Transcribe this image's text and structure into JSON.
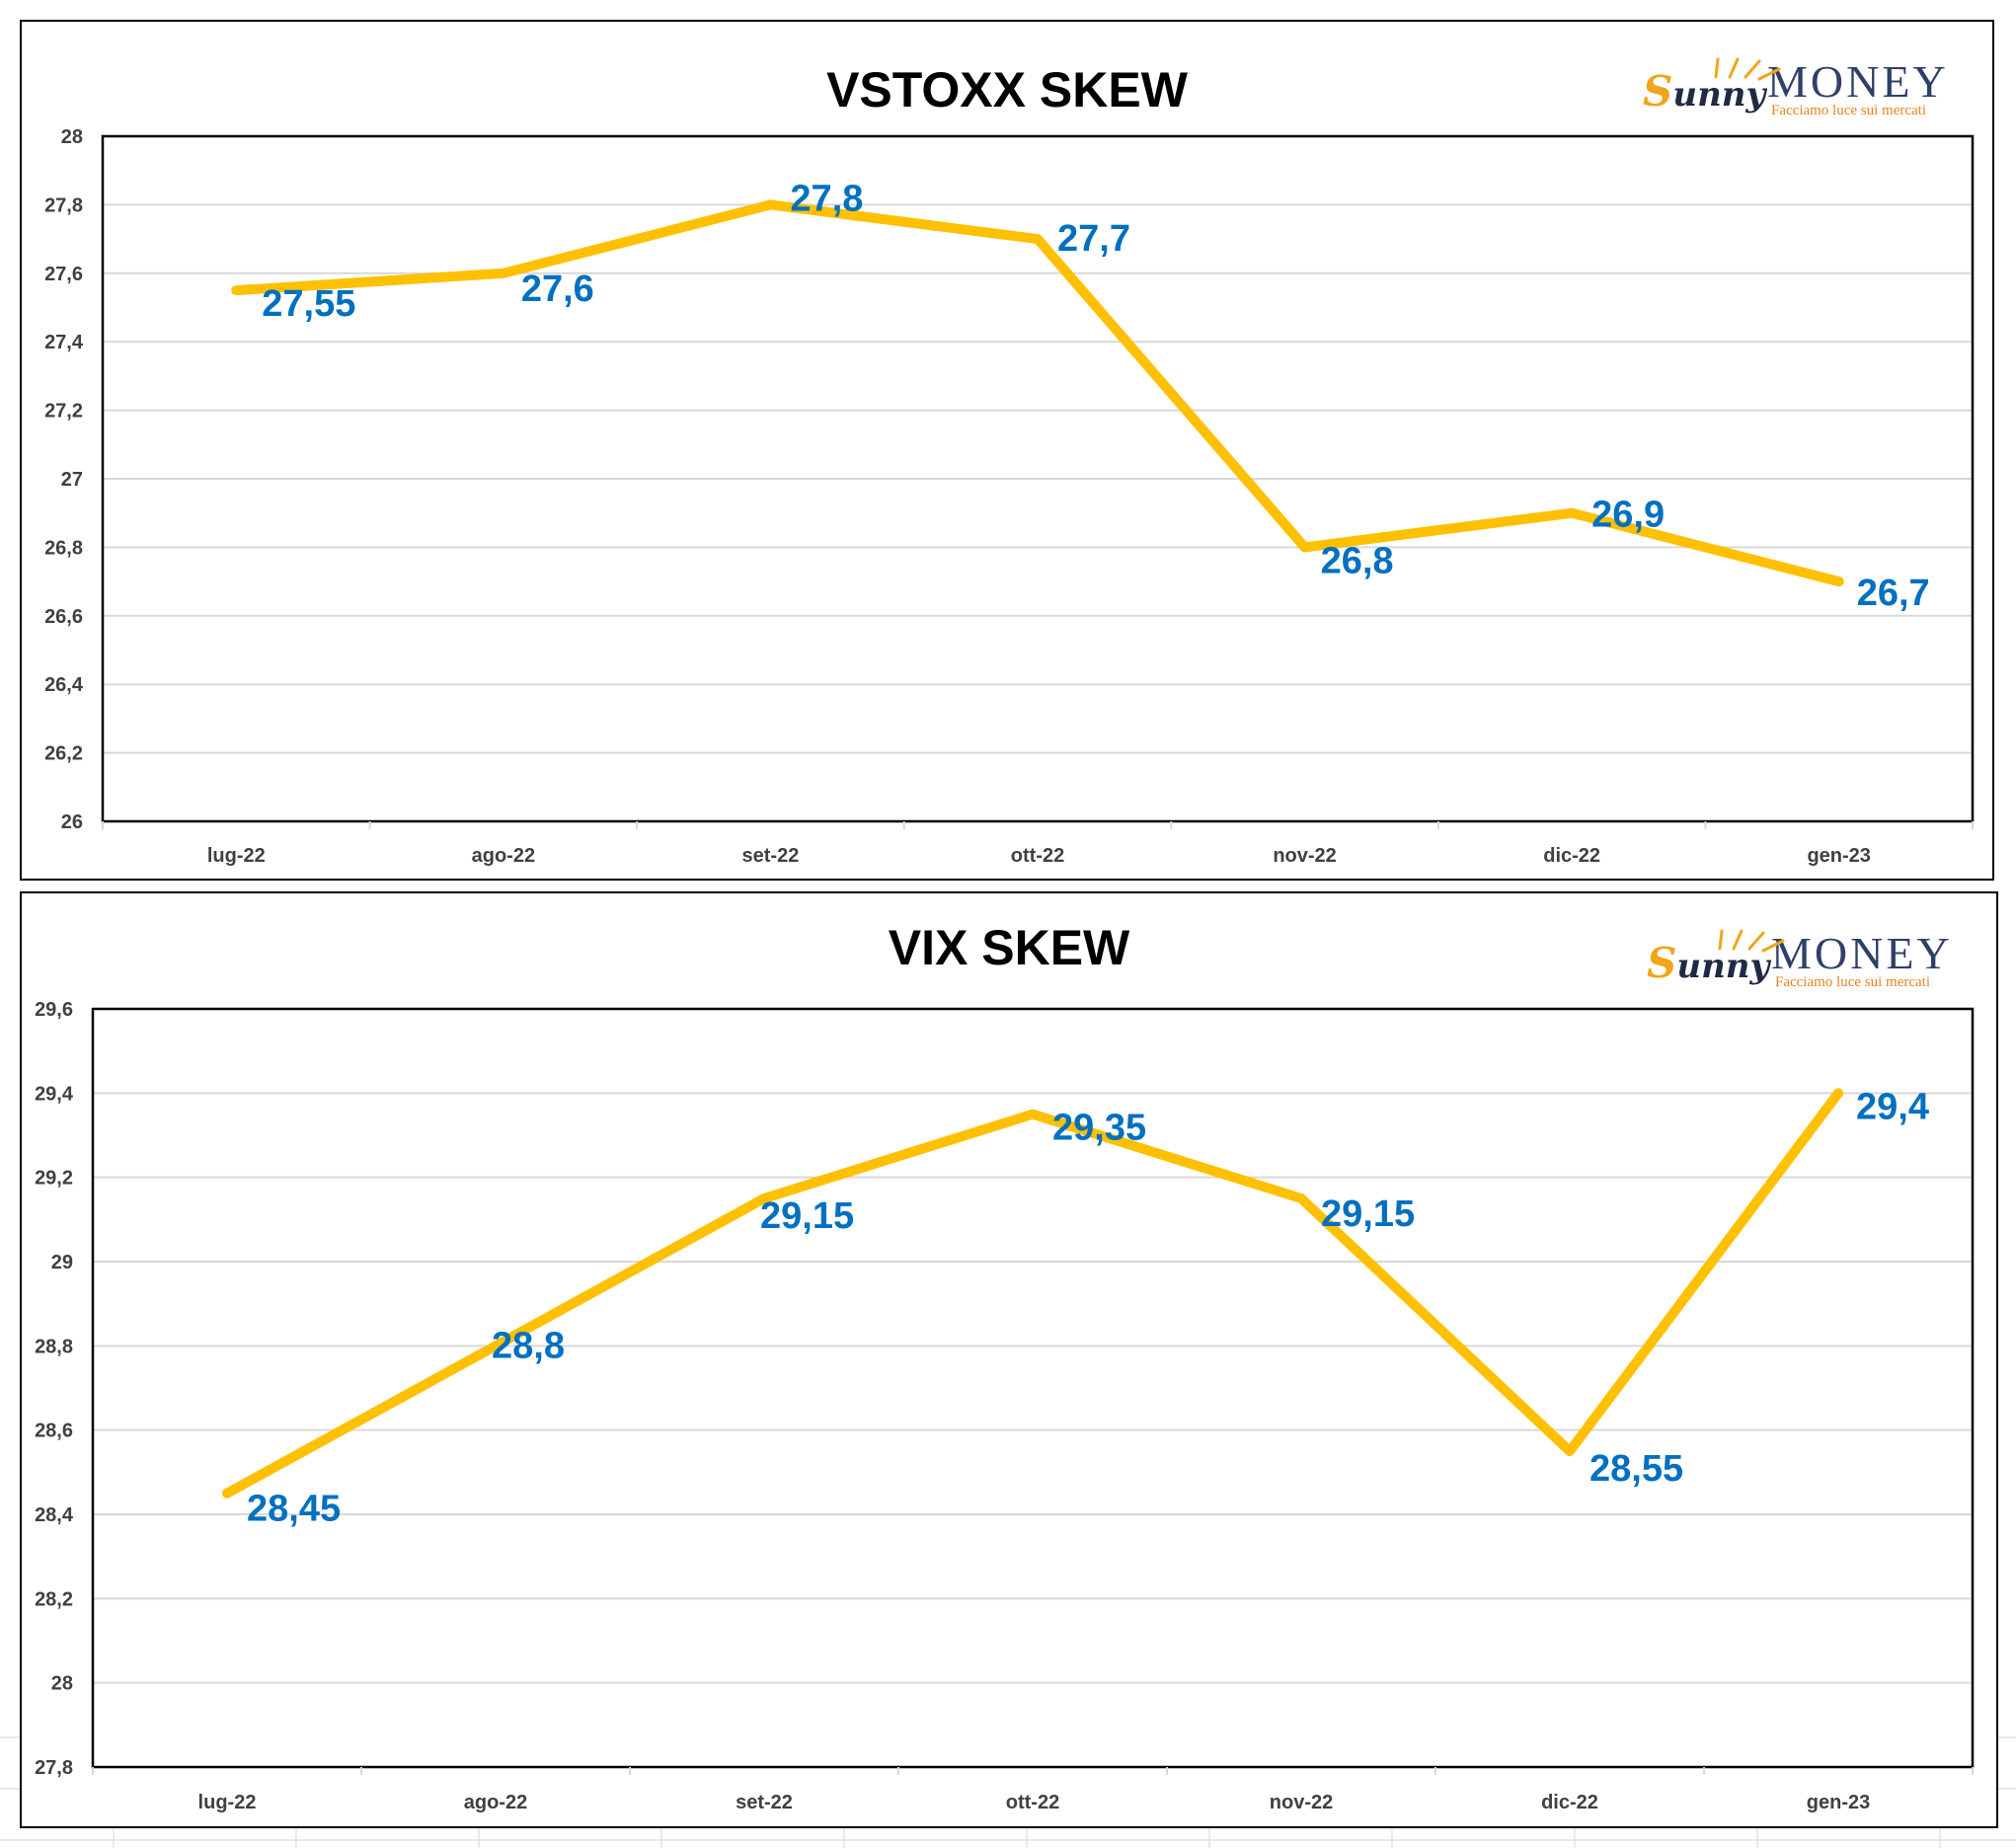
{
  "chart_data": [
    {
      "type": "line",
      "title": "VSTOXX SKEW",
      "categories": [
        "lug-22",
        "ago-22",
        "set-22",
        "ott-22",
        "nov-22",
        "dic-22",
        "gen-23"
      ],
      "values": [
        27.55,
        27.6,
        27.8,
        27.7,
        26.8,
        26.9,
        26.7
      ],
      "data_labels": [
        "27,55",
        "27,6",
        "27,8",
        "27,7",
        "26,8",
        "26,9",
        "26,7"
      ],
      "yticks": [
        26,
        26.2,
        26.4,
        26.6,
        26.8,
        27,
        27.2,
        27.4,
        27.6,
        27.8,
        28
      ],
      "ytick_labels": [
        "26",
        "26,2",
        "26,4",
        "26,6",
        "26,8",
        "27",
        "27,2",
        "27,4",
        "27,6",
        "27,8",
        "28"
      ],
      "ylim": [
        26,
        28
      ],
      "xlabel": "",
      "ylabel": "",
      "grid": true,
      "line_color": "#ffc000",
      "label_color": "#0070c0",
      "logo": {
        "brand": "unny",
        "brand_initial": "S",
        "word": "MONEY",
        "tagline": "Facciamo luce sui mercati"
      }
    },
    {
      "type": "line",
      "title": "VIX SKEW",
      "categories": [
        "lug-22",
        "ago-22",
        "set-22",
        "ott-22",
        "nov-22",
        "dic-22",
        "gen-23"
      ],
      "values": [
        28.45,
        28.8,
        29.15,
        29.35,
        29.15,
        28.55,
        29.4
      ],
      "data_labels": [
        "28,45",
        "28,8",
        "29,15",
        "29,35",
        "29,15",
        "28,55",
        "29,4"
      ],
      "yticks": [
        27.8,
        28,
        28.2,
        28.4,
        28.6,
        28.8,
        29,
        29.2,
        29.4,
        29.6
      ],
      "ytick_labels": [
        "27,8",
        "28",
        "28,2",
        "28,4",
        "28,6",
        "28,8",
        "29",
        "29,2",
        "29,4",
        "29,6"
      ],
      "ylim": [
        27.8,
        29.6
      ],
      "xlabel": "",
      "ylabel": "",
      "grid": true,
      "line_color": "#ffc000",
      "label_color": "#0070c0",
      "logo": {
        "brand": "unny",
        "brand_initial": "S",
        "word": "MONEY",
        "tagline": "Facciamo luce sui mercati"
      }
    }
  ]
}
